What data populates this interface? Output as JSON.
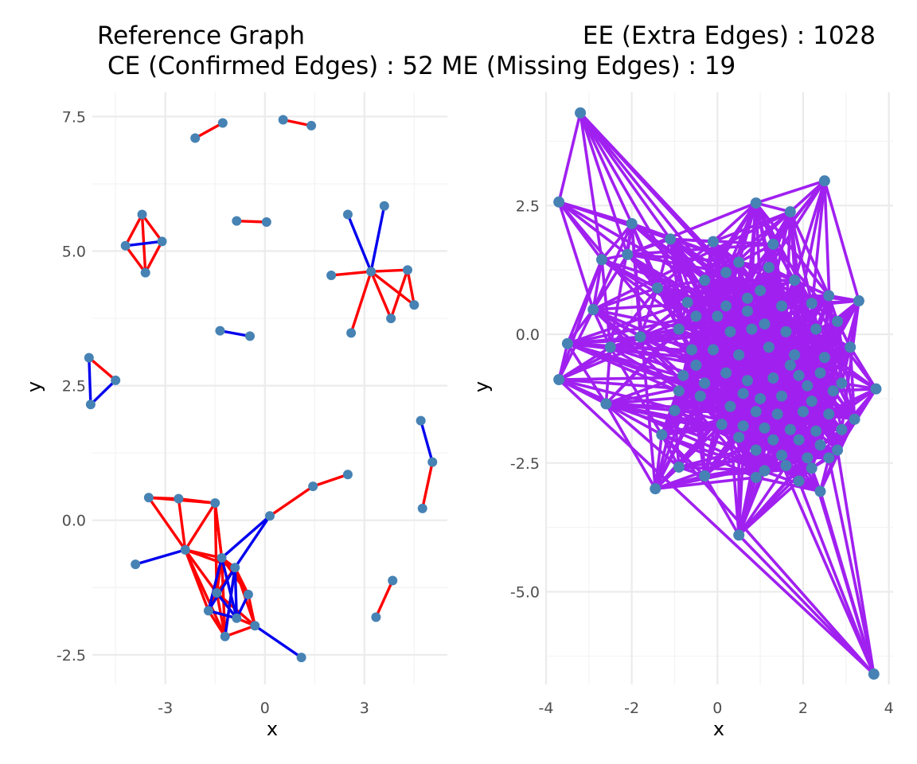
{
  "title": {
    "line1_left": "Reference Graph",
    "line1_right": "EE (Extra Edges) : 1028",
    "line2": "CE (Confirmed Edges) : 52 ME (Missing Edges) : 19"
  },
  "colors": {
    "node": "#4682b4",
    "confirmed_edge": "#ff0000",
    "missing_edge": "#0000ee",
    "extra_edge": "#a020f0"
  },
  "chart_data": [
    {
      "type": "scatter",
      "name": "reference-graph",
      "xlabel": "x",
      "ylabel": "y",
      "xlim": [
        -5.2,
        5.5
      ],
      "ylim": [
        -3.05,
        7.95
      ],
      "x_ticks": [
        -3,
        0,
        3
      ],
      "x_tick_labels": [
        "-3",
        "0",
        "3"
      ],
      "y_ticks": [
        -2.5,
        0,
        2.5,
        5,
        7.5
      ],
      "y_tick_labels": [
        "-2.5",
        "0.0",
        "2.5",
        "5.0",
        "7.5"
      ],
      "grid": true,
      "nodes": [
        [
          -2.1,
          7.1
        ],
        [
          -1.27,
          7.38
        ],
        [
          0.55,
          7.44
        ],
        [
          1.4,
          7.33
        ],
        [
          -3.7,
          5.68
        ],
        [
          -4.2,
          5.1
        ],
        [
          -3.1,
          5.18
        ],
        [
          -3.6,
          4.6
        ],
        [
          -0.85,
          5.56
        ],
        [
          0.05,
          5.54
        ],
        [
          2.5,
          5.68
        ],
        [
          3.6,
          5.84
        ],
        [
          2.0,
          4.55
        ],
        [
          3.2,
          4.62
        ],
        [
          4.3,
          4.65
        ],
        [
          4.5,
          4.0
        ],
        [
          3.8,
          3.75
        ],
        [
          2.6,
          3.48
        ],
        [
          -1.35,
          3.52
        ],
        [
          -0.45,
          3.42
        ],
        [
          -5.3,
          3.02
        ],
        [
          -4.5,
          2.6
        ],
        [
          -5.25,
          2.15
        ],
        [
          4.7,
          1.85
        ],
        [
          5.05,
          1.08
        ],
        [
          4.75,
          0.22
        ],
        [
          -3.5,
          0.42
        ],
        [
          -2.6,
          0.4
        ],
        [
          -1.5,
          0.32
        ],
        [
          0.15,
          0.08
        ],
        [
          1.45,
          0.63
        ],
        [
          2.5,
          0.85
        ],
        [
          -3.9,
          -0.82
        ],
        [
          -2.4,
          -0.55
        ],
        [
          -1.3,
          -0.7
        ],
        [
          -0.9,
          -0.88
        ],
        [
          -1.45,
          -1.35
        ],
        [
          -0.5,
          -1.38
        ],
        [
          -1.7,
          -1.68
        ],
        [
          -0.85,
          -1.82
        ],
        [
          -1.2,
          -2.16
        ],
        [
          -0.3,
          -1.96
        ],
        [
          1.1,
          -2.55
        ],
        [
          3.35,
          -1.8
        ],
        [
          3.85,
          -1.12
        ]
      ],
      "confirmed_edges": [
        [
          0,
          1
        ],
        [
          2,
          3
        ],
        [
          4,
          5
        ],
        [
          4,
          7
        ],
        [
          5,
          7
        ],
        [
          6,
          7
        ],
        [
          4,
          6
        ],
        [
          8,
          9
        ],
        [
          12,
          13
        ],
        [
          13,
          14
        ],
        [
          13,
          15
        ],
        [
          13,
          16
        ],
        [
          14,
          15
        ],
        [
          14,
          16
        ],
        [
          13,
          17
        ],
        [
          20,
          21
        ],
        [
          24,
          25
        ],
        [
          26,
          27
        ],
        [
          27,
          33
        ],
        [
          26,
          33
        ],
        [
          28,
          33
        ],
        [
          28,
          34
        ],
        [
          29,
          30
        ],
        [
          30,
          31
        ],
        [
          33,
          34
        ],
        [
          33,
          36
        ],
        [
          33,
          38
        ],
        [
          33,
          40
        ],
        [
          28,
          36
        ],
        [
          34,
          36
        ],
        [
          34,
          38
        ],
        [
          36,
          38
        ],
        [
          38,
          40
        ],
        [
          40,
          41
        ],
        [
          36,
          40
        ],
        [
          35,
          37
        ],
        [
          37,
          41
        ],
        [
          35,
          41
        ],
        [
          34,
          40
        ],
        [
          36,
          39
        ],
        [
          35,
          36
        ],
        [
          39,
          41
        ],
        [
          28,
          34
        ],
        [
          43,
          44
        ],
        [
          27,
          28
        ],
        [
          34,
          37
        ],
        [
          33,
          35
        ],
        [
          38,
          39
        ],
        [
          36,
          41
        ],
        [
          26,
          28
        ],
        [
          35,
          40
        ],
        [
          34,
          35
        ]
      ],
      "missing_edges": [
        [
          5,
          6
        ],
        [
          10,
          13
        ],
        [
          11,
          13
        ],
        [
          18,
          19
        ],
        [
          20,
          22
        ],
        [
          21,
          22
        ],
        [
          23,
          24
        ],
        [
          32,
          33
        ],
        [
          29,
          34
        ],
        [
          29,
          35
        ],
        [
          34,
          39
        ],
        [
          35,
          38
        ],
        [
          35,
          39
        ],
        [
          36,
          39
        ],
        [
          38,
          39
        ],
        [
          41,
          42
        ],
        [
          34,
          38
        ],
        [
          37,
          39
        ],
        [
          40,
          35
        ]
      ]
    },
    {
      "type": "scatter",
      "name": "estimated-graph",
      "xlabel": "x",
      "ylabel": "y",
      "xlim": [
        -4.0,
        4.1
      ],
      "ylim": [
        -6.8,
        4.7
      ],
      "x_ticks": [
        -4,
        -2,
        0,
        2,
        4
      ],
      "x_tick_labels": [
        "-4",
        "-2",
        "0",
        "2",
        "4"
      ],
      "y_ticks": [
        -5,
        -2.5,
        0,
        2.5
      ],
      "y_tick_labels": [
        "-5.0",
        "-2.5",
        "0.0",
        "2.5"
      ],
      "grid": true,
      "nodes": [
        [
          -3.2,
          4.3
        ],
        [
          -3.7,
          2.57
        ],
        [
          -2.0,
          2.15
        ],
        [
          0.9,
          2.55
        ],
        [
          1.7,
          2.38
        ],
        [
          2.5,
          2.98
        ],
        [
          -2.7,
          1.45
        ],
        [
          -2.1,
          1.55
        ],
        [
          -1.1,
          1.85
        ],
        [
          -0.1,
          1.8
        ],
        [
          1.3,
          1.75
        ],
        [
          -1.4,
          0.9
        ],
        [
          -2.9,
          0.48
        ],
        [
          -3.5,
          -0.18
        ],
        [
          -2.5,
          -0.25
        ],
        [
          -1.8,
          -0.05
        ],
        [
          -3.7,
          -0.88
        ],
        [
          -2.6,
          -1.35
        ],
        [
          -1.0,
          -1.48
        ],
        [
          -1.3,
          -1.95
        ],
        [
          -0.9,
          -2.58
        ],
        [
          -1.45,
          -3.0
        ],
        [
          -0.3,
          -2.75
        ],
        [
          0.9,
          -2.78
        ],
        [
          2.4,
          -3.05
        ],
        [
          0.5,
          -3.9
        ],
        [
          3.65,
          -6.6
        ],
        [
          3.7,
          -1.06
        ],
        [
          3.3,
          0.65
        ],
        [
          3.2,
          -1.65
        ],
        [
          2.6,
          -2.4
        ],
        [
          1.9,
          -2.85
        ],
        [
          0.2,
          1.2
        ],
        [
          0.5,
          1.4
        ],
        [
          1.0,
          0.85
        ],
        [
          1.8,
          1.05
        ],
        [
          -0.7,
          0.62
        ],
        [
          -0.3,
          1.05
        ],
        [
          0.2,
          0.55
        ],
        [
          0.7,
          0.45
        ],
        [
          1.5,
          0.55
        ],
        [
          2.2,
          0.6
        ],
        [
          2.6,
          0.75
        ],
        [
          -0.9,
          0.1
        ],
        [
          -0.5,
          0.35
        ],
        [
          0.3,
          0.05
        ],
        [
          0.8,
          0.1
        ],
        [
          1.1,
          0.2
        ],
        [
          1.6,
          0.05
        ],
        [
          2.3,
          0.1
        ],
        [
          2.8,
          0.25
        ],
        [
          -0.6,
          -0.3
        ],
        [
          -0.1,
          -0.3
        ],
        [
          0.5,
          -0.4
        ],
        [
          1.2,
          -0.25
        ],
        [
          1.8,
          -0.4
        ],
        [
          2.5,
          -0.45
        ],
        [
          3.1,
          -0.25
        ],
        [
          -0.8,
          -0.8
        ],
        [
          -0.3,
          -0.95
        ],
        [
          0.2,
          -0.75
        ],
        [
          0.7,
          -0.9
        ],
        [
          1.3,
          -0.85
        ],
        [
          1.9,
          -0.8
        ],
        [
          2.4,
          -0.75
        ],
        [
          2.9,
          -0.95
        ],
        [
          -0.9,
          -1.1
        ],
        [
          -0.4,
          -1.2
        ],
        [
          0.6,
          -1.15
        ],
        [
          1.0,
          -1.25
        ],
        [
          1.5,
          -1.2
        ],
        [
          2.2,
          -1.3
        ],
        [
          2.7,
          -1.1
        ],
        [
          0.3,
          -1.4
        ],
        [
          0.9,
          -1.5
        ],
        [
          1.4,
          -1.55
        ],
        [
          2.0,
          -1.5
        ],
        [
          2.6,
          -1.55
        ],
        [
          0.1,
          -1.75
        ],
        [
          0.6,
          -1.78
        ],
        [
          1.1,
          -1.82
        ],
        [
          1.7,
          -1.85
        ],
        [
          2.3,
          -1.88
        ],
        [
          2.9,
          -1.85
        ],
        [
          0.5,
          -2.0
        ],
        [
          1.3,
          -2.05
        ],
        [
          1.9,
          -2.05
        ],
        [
          2.4,
          -2.15
        ],
        [
          0.9,
          -2.25
        ],
        [
          1.5,
          -2.35
        ],
        [
          2.1,
          -2.4
        ],
        [
          2.8,
          -2.25
        ],
        [
          1.1,
          -2.65
        ],
        [
          1.6,
          -2.55
        ],
        [
          2.2,
          -2.6
        ],
        [
          0.0,
          0.35
        ],
        [
          0.7,
          0.7
        ],
        [
          1.2,
          1.3
        ],
        [
          -0.5,
          -0.6
        ],
        [
          1.7,
          -0.6
        ],
        [
          2.1,
          -1.0
        ]
      ],
      "extra_edge_count": 1028
    }
  ]
}
